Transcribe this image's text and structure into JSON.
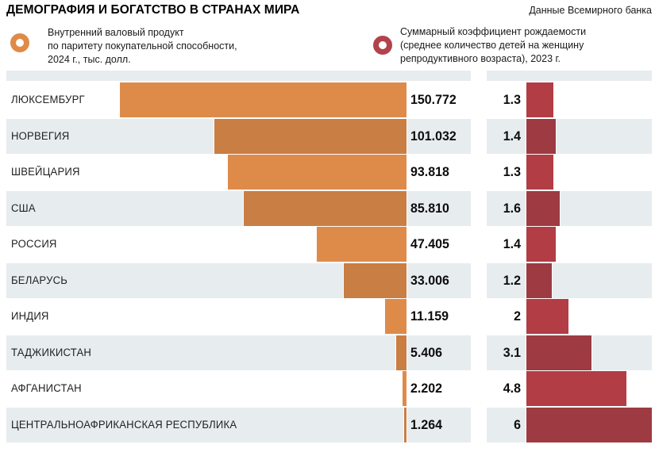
{
  "title": "ДЕМОГРАФИЯ И БОГАТСТВО В СТРАНАХ МИРА",
  "source": "Данные Всемирного банка",
  "legend": {
    "gdp": {
      "line1": "Внутренний валовый продукт",
      "line2": "по паритету покупательной способности,",
      "line3": "2024 г., тыс. долл.",
      "color": "#e08a47"
    },
    "fertility": {
      "line1": "Суммарный коэффициент рождаемости",
      "line2": "(среднее количество детей на  женщину",
      "line3": "репродуктивного возраста),  2023 г.",
      "color": "#b2434b"
    }
  },
  "colors": {
    "gdp_bar_light": "#de8b4a",
    "gdp_bar_dark": "#c97e43",
    "fertility_bar_light": "#b23d45",
    "fertility_bar_dark": "#9d3a42",
    "row_stripe": "#e7ecef"
  },
  "rows": [
    {
      "country": "ЛЮКСЕМБУРГ",
      "gdp": 150.772,
      "gdp_label": "150.772",
      "fertility": 1.3,
      "fertility_label": "1.3"
    },
    {
      "country": "НОРВЕГИЯ",
      "gdp": 101.032,
      "gdp_label": "101.032",
      "fertility": 1.4,
      "fertility_label": "1.4"
    },
    {
      "country": "ШВЕЙЦАРИЯ",
      "gdp": 93.818,
      "gdp_label": "93.818",
      "fertility": 1.3,
      "fertility_label": "1.3"
    },
    {
      "country": "США",
      "gdp": 85.81,
      "gdp_label": "85.810",
      "fertility": 1.6,
      "fertility_label": "1.6"
    },
    {
      "country": "РОССИЯ",
      "gdp": 47.405,
      "gdp_label": "47.405",
      "fertility": 1.4,
      "fertility_label": "1.4"
    },
    {
      "country": "БЕЛАРУСЬ",
      "gdp": 33.006,
      "gdp_label": "33.006",
      "fertility": 1.2,
      "fertility_label": "1.2"
    },
    {
      "country": "ИНДИЯ",
      "gdp": 11.159,
      "gdp_label": "11.159",
      "fertility": 2,
      "fertility_label": "2"
    },
    {
      "country": "ТАДЖИКИСТАН",
      "gdp": 5.406,
      "gdp_label": "5.406",
      "fertility": 3.1,
      "fertility_label": "3.1"
    },
    {
      "country": "АФГАНИСТАН",
      "gdp": 2.202,
      "gdp_label": "2.202",
      "fertility": 4.8,
      "fertility_label": "4.8"
    },
    {
      "country": "ЦЕНТРАЛЬНОАФРИКАНСКАЯ РЕСПУБЛИКА",
      "gdp": 1.264,
      "gdp_label": "1.264",
      "fertility": 6,
      "fertility_label": "6"
    }
  ],
  "chart_data": {
    "type": "bar",
    "orientation": "horizontal",
    "title": "ДЕМОГРАФИЯ И БОГАТСТВО В СТРАНАХ МИРА",
    "source": "Данные Всемирного банка",
    "categories": [
      "ЛЮКСЕМБУРГ",
      "НОРВЕГИЯ",
      "ШВЕЙЦАРИЯ",
      "США",
      "РОССИЯ",
      "БЕЛАРУСЬ",
      "ИНДИЯ",
      "ТАДЖИКИСТАН",
      "АФГАНИСТАН",
      "ЦЕНТРАЛЬНОАФРИКАНСКАЯ РЕСПУБЛИКА"
    ],
    "series": [
      {
        "name": "Внутренний валовый продукт по паритету покупательной способности, 2024 г., тыс. долл.",
        "values": [
          150.772,
          101.032,
          93.818,
          85.81,
          47.405,
          33.006,
          11.159,
          5.406,
          2.202,
          1.264
        ],
        "labels": [
          "150.772",
          "101.032",
          "93.818",
          "85.810",
          "47.405",
          "33.006",
          "11.159",
          "5.406",
          "2.202",
          "1.264"
        ],
        "colors": [
          "#de8b4a",
          "#c97e43"
        ],
        "direction": "right-anchored, grows left"
      },
      {
        "name": "Суммарный коэффициент рождаемости (среднее количество детей на женщину репродуктивного возраста), 2023 г.",
        "values": [
          1.3,
          1.4,
          1.3,
          1.6,
          1.4,
          1.2,
          2,
          3.1,
          4.8,
          6
        ],
        "labels": [
          "1.3",
          "1.4",
          "1.3",
          "1.6",
          "1.4",
          "1.2",
          "2",
          "3.1",
          "4.8",
          "6"
        ],
        "colors": [
          "#b23d45",
          "#9d3a42"
        ],
        "direction": "left-anchored, grows right"
      }
    ],
    "legend_position": "top",
    "grid": false,
    "value_labels_shown": true
  }
}
